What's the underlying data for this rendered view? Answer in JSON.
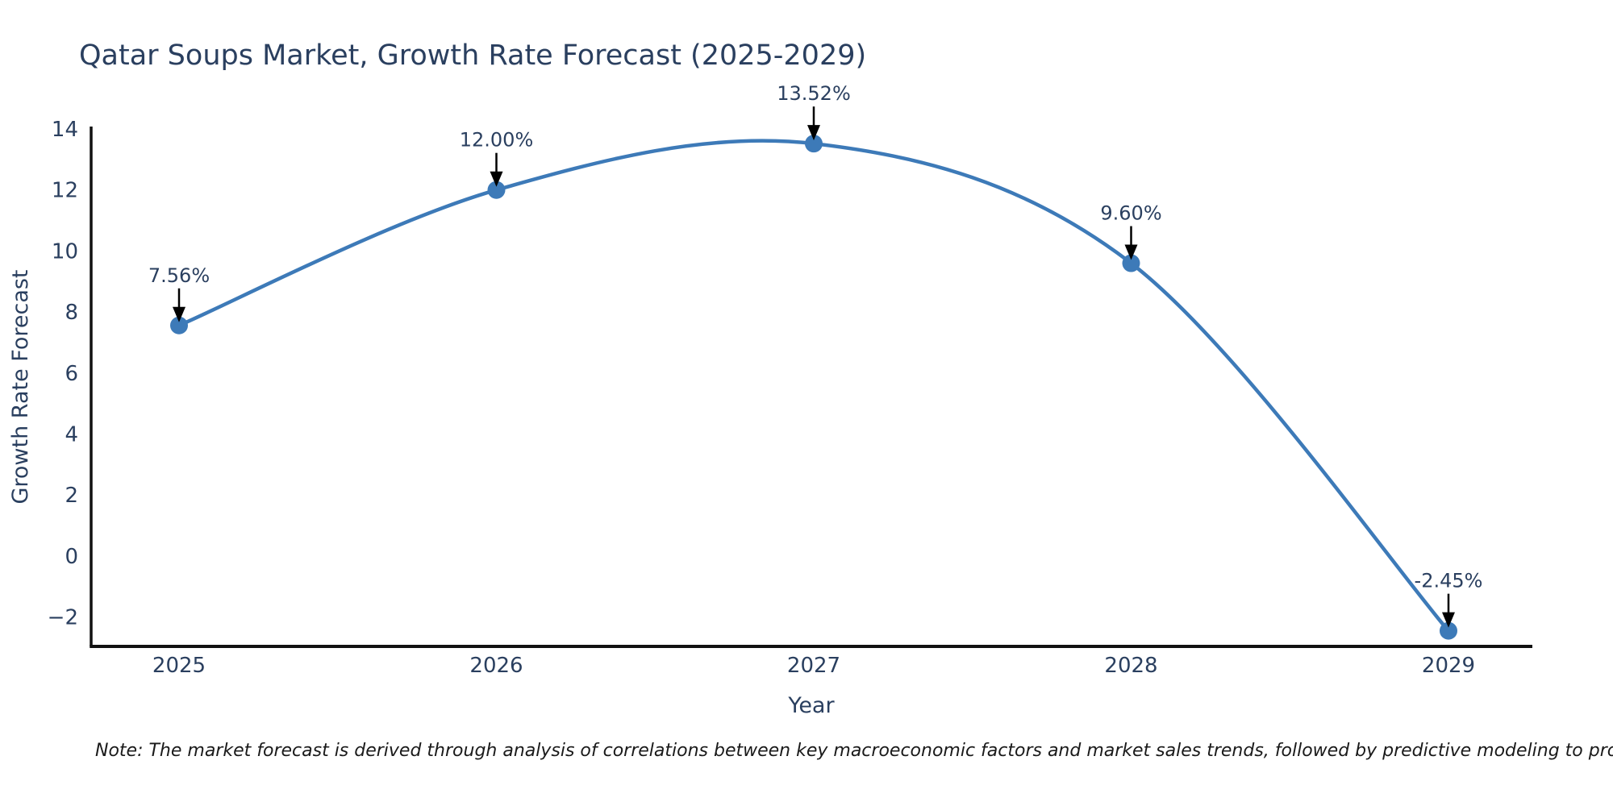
{
  "page": {
    "background": "#ffffff"
  },
  "chart_data": {
    "type": "line",
    "title": "Qatar Soups Market, Growth Rate Forecast (2025-2029)",
    "xlabel": "Year",
    "ylabel": "Growth Rate Forecast",
    "x": [
      2025,
      2026,
      2027,
      2028,
      2029
    ],
    "xticks": [
      "2025",
      "2026",
      "2027",
      "2028",
      "2029"
    ],
    "y": [
      7.56,
      12.0,
      13.52,
      9.6,
      -2.45
    ],
    "point_labels": [
      "7.56%",
      "12.00%",
      "13.52%",
      "9.60%",
      "-2.45%"
    ],
    "ytick_values": [
      14,
      12,
      10,
      8,
      6,
      4,
      2,
      0,
      -2
    ],
    "ytick_labels": [
      "14",
      "12",
      "10",
      "8",
      "6",
      "4",
      "2",
      "0",
      "−2"
    ],
    "ylim": [
      -3.1,
      14.1
    ],
    "line_shape": "spline",
    "grid": false,
    "legend": false,
    "colors": {
      "line": "#3d7ab8",
      "marker": "#3d7ab8",
      "axis": "#111111",
      "text": "#2a3f5f",
      "annotation_arrow": "#000000",
      "note": "#1a1a1a"
    },
    "note": "Note: The market forecast is derived through analysis of correlations between key macroeconomic factors and market sales trends, followed by predictive modeling to project future sales"
  }
}
